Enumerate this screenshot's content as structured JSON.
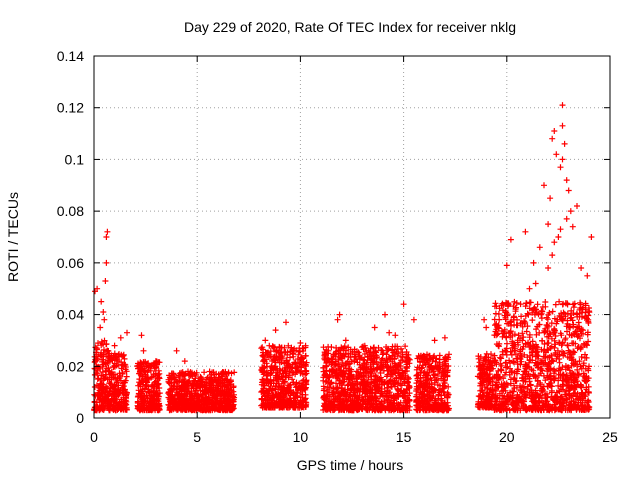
{
  "chart_data": {
    "type": "scatter",
    "title": "Day 229 of 2020, Rate Of TEC Index for receiver nklg",
    "xlabel": "GPS time / hours",
    "ylabel": "ROTI / TECUs",
    "xlim": [
      0,
      25
    ],
    "ylim": [
      0,
      0.14
    ],
    "xticks": [
      0,
      5,
      10,
      15,
      20,
      25
    ],
    "xtick_labels": [
      "0",
      "5",
      "10",
      "15",
      "20",
      "25"
    ],
    "yticks": [
      0,
      0.02,
      0.04,
      0.06,
      0.08,
      0.1,
      0.12,
      0.14
    ],
    "ytick_labels": [
      "0",
      "0.02",
      "0.04",
      "0.06",
      "0.08",
      "0.1",
      "0.12",
      "0.14"
    ],
    "grid": true,
    "marker": "+",
    "color": "#ff0000",
    "series": [
      {
        "clusters": [
          {
            "x_range": [
              0.0,
              0.7
            ],
            "y_range": [
              0.003,
              0.03
            ],
            "outliers": [
              [
                0.05,
                0.049
              ],
              [
                0.15,
                0.05
              ],
              [
                0.35,
                0.045
              ],
              [
                0.45,
                0.041
              ],
              [
                0.55,
                0.053
              ],
              [
                0.6,
                0.06
              ],
              [
                0.6,
                0.07
              ],
              [
                0.65,
                0.072
              ],
              [
                0.3,
                0.035
              ],
              [
                0.5,
                0.038
              ]
            ]
          },
          {
            "x_range": [
              0.7,
              1.6
            ],
            "y_range": [
              0.003,
              0.025
            ],
            "outliers": [
              [
                1.3,
                0.031
              ],
              [
                1.6,
                0.033
              ],
              [
                1.0,
                0.028
              ]
            ]
          },
          {
            "x_range": [
              2.1,
              3.2
            ],
            "y_range": [
              0.003,
              0.022
            ],
            "outliers": [
              [
                2.3,
                0.032
              ],
              [
                2.4,
                0.026
              ],
              [
                3.0,
                0.022
              ]
            ]
          },
          {
            "x_range": [
              3.6,
              6.8
            ],
            "y_range": [
              0.003,
              0.018
            ],
            "outliers": [
              [
                4.0,
                0.026
              ],
              [
                4.4,
                0.022
              ],
              [
                5.6,
                0.018
              ]
            ]
          },
          {
            "x_range": [
              8.1,
              10.3
            ],
            "y_range": [
              0.004,
              0.028
            ],
            "outliers": [
              [
                8.8,
                0.034
              ],
              [
                9.3,
                0.037
              ],
              [
                8.3,
                0.03
              ],
              [
                10.0,
                0.029
              ]
            ]
          },
          {
            "x_range": [
              11.1,
              15.3
            ],
            "y_range": [
              0.003,
              0.028
            ],
            "outliers": [
              [
                11.9,
                0.04
              ],
              [
                11.8,
                0.038
              ],
              [
                13.6,
                0.035
              ],
              [
                14.1,
                0.04
              ],
              [
                14.3,
                0.033
              ],
              [
                15.0,
                0.044
              ],
              [
                15.5,
                0.038
              ],
              [
                14.6,
                0.032
              ],
              [
                12.2,
                0.03
              ]
            ]
          },
          {
            "x_range": [
              15.6,
              17.2
            ],
            "y_range": [
              0.003,
              0.025
            ],
            "outliers": [
              [
                16.5,
                0.03
              ],
              [
                17.0,
                0.031
              ]
            ]
          },
          {
            "x_range": [
              18.6,
              19.4
            ],
            "y_range": [
              0.004,
              0.025
            ],
            "outliers": [
              [
                18.9,
                0.038
              ],
              [
                19.0,
                0.035
              ]
            ]
          },
          {
            "x_range": [
              19.4,
              24.0
            ],
            "y_range": [
              0.003,
              0.045
            ],
            "outliers": [
              [
                20.2,
                0.069
              ],
              [
                20.0,
                0.059
              ],
              [
                20.9,
                0.072
              ],
              [
                21.3,
                0.06
              ],
              [
                21.6,
                0.066
              ],
              [
                21.8,
                0.09
              ],
              [
                22.1,
                0.085
              ],
              [
                22.0,
                0.075
              ],
              [
                22.4,
                0.102
              ],
              [
                22.2,
                0.108
              ],
              [
                22.3,
                0.111
              ],
              [
                22.6,
                0.097
              ],
              [
                22.7,
                0.1
              ],
              [
                22.8,
                0.106
              ],
              [
                22.7,
                0.113
              ],
              [
                22.7,
                0.121
              ],
              [
                22.9,
                0.092
              ],
              [
                23.0,
                0.088
              ],
              [
                23.1,
                0.08
              ],
              [
                22.5,
                0.07
              ],
              [
                22.3,
                0.068
              ],
              [
                22.2,
                0.063
              ],
              [
                22.6,
                0.073
              ],
              [
                22.9,
                0.077
              ],
              [
                23.4,
                0.082
              ],
              [
                23.2,
                0.074
              ],
              [
                24.1,
                0.07
              ],
              [
                23.6,
                0.058
              ],
              [
                23.9,
                0.055
              ],
              [
                21.1,
                0.05
              ],
              [
                21.4,
                0.052
              ],
              [
                22.0,
                0.058
              ]
            ]
          }
        ]
      }
    ]
  }
}
